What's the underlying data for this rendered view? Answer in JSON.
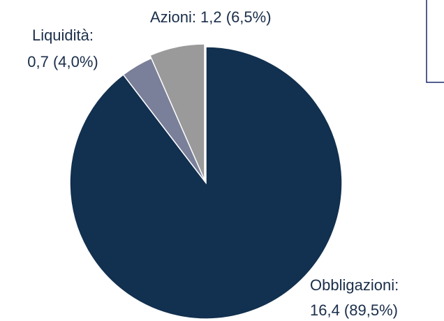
{
  "chart_data": {
    "type": "pie",
    "categories": [
      "Obbligazioni:",
      "Liquidità:",
      "Azioni:"
    ],
    "values": [
      16.4,
      0.7,
      1.2
    ],
    "value_labels": [
      "16,4 (89,5%)",
      "0,7 (4,0%)",
      "1,2 (6,5%)"
    ],
    "colors": [
      "#12304f",
      "#7a8099",
      "#9a9a9a"
    ]
  }
}
